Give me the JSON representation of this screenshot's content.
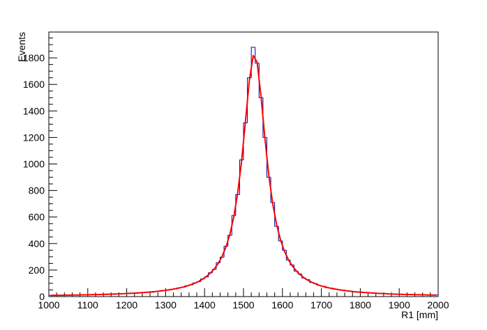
{
  "chart_data": {
    "type": "histogram",
    "x_label": "R1 [mm]",
    "y_label": "Events",
    "xlim": [
      1000,
      2000
    ],
    "ylim": [
      0,
      1995
    ],
    "xticks": [
      1000,
      1100,
      1200,
      1300,
      1400,
      1500,
      1600,
      1700,
      1800,
      1900,
      2000
    ],
    "yticks": [
      0,
      200,
      400,
      600,
      800,
      1000,
      1200,
      1400,
      1600,
      1800
    ],
    "color": "#000099",
    "bins": [
      1000,
      1010,
      1020,
      1030,
      1040,
      1050,
      1060,
      1070,
      1080,
      1090,
      1100,
      1110,
      1120,
      1130,
      1140,
      1150,
      1160,
      1170,
      1180,
      1190,
      1200,
      1210,
      1220,
      1230,
      1240,
      1250,
      1260,
      1270,
      1280,
      1290,
      1300,
      1310,
      1320,
      1330,
      1340,
      1350,
      1360,
      1370,
      1380,
      1390,
      1400,
      1410,
      1420,
      1430,
      1440,
      1450,
      1460,
      1470,
      1480,
      1490,
      1500,
      1510,
      1520,
      1530,
      1540,
      1550,
      1560,
      1570,
      1580,
      1590,
      1600,
      1610,
      1620,
      1630,
      1640,
      1650,
      1660,
      1670,
      1680,
      1690,
      1700,
      1710,
      1720,
      1730,
      1740,
      1750,
      1760,
      1770,
      1780,
      1790,
      1800,
      1810,
      1820,
      1830,
      1840,
      1850,
      1860,
      1870,
      1880,
      1890,
      1900,
      1910,
      1920,
      1930,
      1940,
      1950,
      1960,
      1970,
      1980,
      1990,
      2000
    ],
    "counts": [
      9,
      11,
      10,
      8,
      12,
      10,
      13,
      11,
      14,
      12,
      15,
      13,
      16,
      17,
      15,
      19,
      18,
      21,
      20,
      23,
      22,
      27,
      25,
      30,
      29,
      34,
      33,
      39,
      40,
      47,
      48,
      55,
      58,
      66,
      70,
      82,
      88,
      103,
      112,
      133,
      148,
      180,
      205,
      255,
      297,
      380,
      462,
      610,
      770,
      1030,
      1310,
      1650,
      1880,
      1760,
      1500,
      1200,
      900,
      710,
      530,
      420,
      350,
      275,
      238,
      192,
      170,
      140,
      128,
      106,
      98,
      84,
      78,
      67,
      64,
      55,
      52,
      49,
      43,
      41,
      35,
      33,
      31,
      29,
      28,
      25,
      24,
      22,
      21,
      20,
      19,
      18,
      16,
      17,
      15,
      14,
      15,
      13,
      12,
      13,
      11,
      12
    ],
    "fit": {
      "color": "#ff0000",
      "x": [
        1005,
        1015,
        1025,
        1035,
        1045,
        1055,
        1065,
        1075,
        1085,
        1095,
        1105,
        1115,
        1125,
        1135,
        1145,
        1155,
        1165,
        1175,
        1185,
        1195,
        1205,
        1215,
        1225,
        1235,
        1245,
        1255,
        1265,
        1275,
        1285,
        1295,
        1305,
        1315,
        1325,
        1335,
        1345,
        1355,
        1365,
        1375,
        1385,
        1395,
        1405,
        1415,
        1425,
        1435,
        1445,
        1455,
        1465,
        1475,
        1485,
        1495,
        1505,
        1515,
        1525,
        1535,
        1545,
        1555,
        1565,
        1575,
        1585,
        1595,
        1605,
        1615,
        1625,
        1635,
        1645,
        1655,
        1665,
        1675,
        1685,
        1695,
        1705,
        1715,
        1725,
        1735,
        1745,
        1755,
        1765,
        1775,
        1785,
        1795,
        1805,
        1815,
        1825,
        1835,
        1845,
        1855,
        1865,
        1875,
        1885,
        1895,
        1905,
        1915,
        1925,
        1935,
        1945,
        1955,
        1965,
        1975,
        1985,
        1995
      ],
      "values": [
        9,
        10,
        10,
        10,
        11,
        11,
        12,
        12,
        13,
        13,
        14,
        15,
        15,
        16,
        17,
        18,
        19,
        20,
        21,
        22,
        24,
        25,
        27,
        29,
        31,
        33,
        36,
        38,
        42,
        45,
        49,
        54,
        59,
        65,
        72,
        80,
        90,
        101,
        115,
        131,
        152,
        177,
        209,
        250,
        303,
        374,
        469,
        600,
        779,
        1019,
        1320,
        1630,
        1818,
        1767,
        1511,
        1194,
        915,
        701,
        543,
        428,
        343,
        280,
        233,
        196,
        166,
        143,
        124,
        109,
        96,
        85,
        76,
        69,
        62,
        57,
        52,
        47,
        44,
        40,
        37,
        34,
        32,
        30,
        28,
        26,
        24,
        23,
        22,
        20,
        19,
        18,
        17,
        16,
        16,
        15,
        14,
        14,
        13,
        12,
        12,
        11
      ]
    }
  }
}
